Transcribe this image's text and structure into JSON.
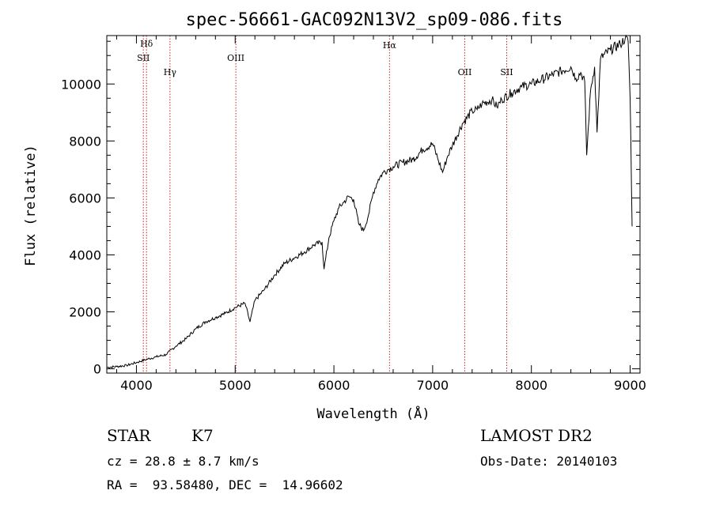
{
  "chart_data": {
    "type": "line",
    "title": "spec-56661-GAC092N13V2_sp09-086.fits",
    "xlabel": "Wavelength (Å)",
    "ylabel": "Flux (relative)",
    "xlim": [
      3700,
      9100
    ],
    "ylim": [
      -150,
      11700
    ],
    "xticks": [
      4000,
      5000,
      6000,
      7000,
      8000,
      9000
    ],
    "yticks": [
      0,
      2000,
      4000,
      6000,
      8000,
      10000
    ],
    "grid": false,
    "lines": [
      {
        "name": "Hδ",
        "x": 4102
      },
      {
        "name": "SII",
        "x": 4070
      },
      {
        "name": "Hγ",
        "x": 4340
      },
      {
        "name": "OIII",
        "x": 5007
      },
      {
        "name": "Hα",
        "x": 6563
      },
      {
        "name": "OII",
        "x": 7325
      },
      {
        "name": "SII",
        "x": 7750
      }
    ],
    "series": [
      {
        "x": [
          3700,
          3800,
          3900,
          4000,
          4100,
          4200,
          4300,
          4400,
          4500,
          4600,
          4700,
          4800,
          4900,
          5000,
          5100,
          5150,
          5200,
          5300,
          5400,
          5500,
          5600,
          5700,
          5800,
          5880,
          5900,
          5950,
          6000,
          6050,
          6100,
          6150,
          6200,
          6250,
          6300,
          6350,
          6400,
          6450,
          6500,
          6550,
          6600,
          6700,
          6800,
          6900,
          7000,
          7050,
          7100,
          7150,
          7200,
          7300,
          7400,
          7450,
          7500,
          7600,
          7650,
          7700,
          7800,
          7900,
          8000,
          8100,
          8200,
          8300,
          8400,
          8450,
          8500,
          8540,
          8560,
          8600,
          8640,
          8665,
          8700,
          8800,
          8900,
          8950,
          8980,
          9000,
          9020
        ],
        "values": [
          50,
          80,
          120,
          220,
          330,
          420,
          500,
          800,
          1050,
          1400,
          1650,
          1800,
          1950,
          2150,
          2300,
          1650,
          2400,
          2800,
          3300,
          3700,
          3900,
          4100,
          4350,
          4450,
          3500,
          4600,
          5200,
          5650,
          5850,
          6050,
          5950,
          5100,
          4850,
          5400,
          6200,
          6650,
          6900,
          7000,
          7100,
          7250,
          7350,
          7700,
          7900,
          7400,
          6900,
          7450,
          7850,
          8600,
          9050,
          9100,
          9300,
          9450,
          9200,
          9450,
          9700,
          9900,
          10000,
          10150,
          10300,
          10450,
          10600,
          10200,
          10400,
          10100,
          7500,
          9800,
          10600,
          8300,
          10900,
          11200,
          11400,
          11600,
          11500,
          9500,
          5000
        ]
      }
    ]
  },
  "info": {
    "object_type": "STAR",
    "subclass": "K7",
    "survey": "LAMOST DR2",
    "cz": "cz = 28.8 ± 8.7 km/s",
    "obs_date": "Obs-Date: 20140103",
    "radec": "RA =  93.58480, DEC =  14.96602"
  },
  "colors": {
    "spectrum": "#000000",
    "marker": "#cc2222",
    "axes": "#000000"
  }
}
